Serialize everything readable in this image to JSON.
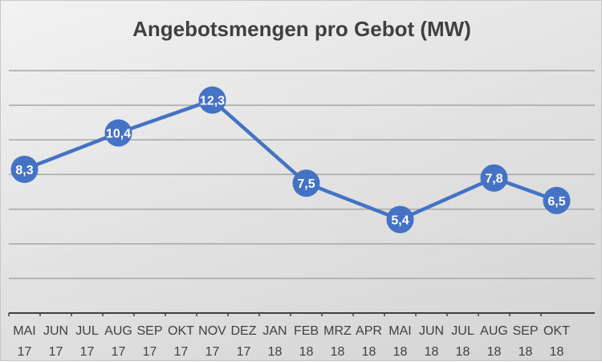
{
  "chart_data": {
    "type": "line",
    "title": "Angebotsmengen pro Gebot (MW)",
    "categories": [
      [
        "MAI",
        "17"
      ],
      [
        "JUN",
        "17"
      ],
      [
        "JUL",
        "17"
      ],
      [
        "AUG",
        "17"
      ],
      [
        "SEP",
        "17"
      ],
      [
        "OKT",
        "17"
      ],
      [
        "NOV",
        "17"
      ],
      [
        "DEZ",
        "17"
      ],
      [
        "JAN",
        "18"
      ],
      [
        "FEB",
        "18"
      ],
      [
        "MRZ",
        "18"
      ],
      [
        "APR",
        "18"
      ],
      [
        "MAI",
        "18"
      ],
      [
        "JUN",
        "18"
      ],
      [
        "JUL",
        "18"
      ],
      [
        "AUG",
        "18"
      ],
      [
        "SEP",
        "18"
      ],
      [
        "OKT",
        "18"
      ]
    ],
    "points": [
      {
        "category_index": 0,
        "value": 8.3,
        "label": "8,3"
      },
      {
        "category_index": 3,
        "value": 10.4,
        "label": "10,4"
      },
      {
        "category_index": 6,
        "value": 12.3,
        "label": "12,3"
      },
      {
        "category_index": 9,
        "value": 7.5,
        "label": "7,5"
      },
      {
        "category_index": 12,
        "value": 5.4,
        "label": "5,4"
      },
      {
        "category_index": 15,
        "value": 7.8,
        "label": "7,8"
      },
      {
        "category_index": 17,
        "value": 6.5,
        "label": "6,5"
      }
    ],
    "ylim": [
      0,
      14
    ],
    "y_grid_step": 2,
    "grid": true,
    "y_tick_labels_shown": false,
    "line_color": "#4472c4",
    "marker_color": "#4472c4"
  }
}
